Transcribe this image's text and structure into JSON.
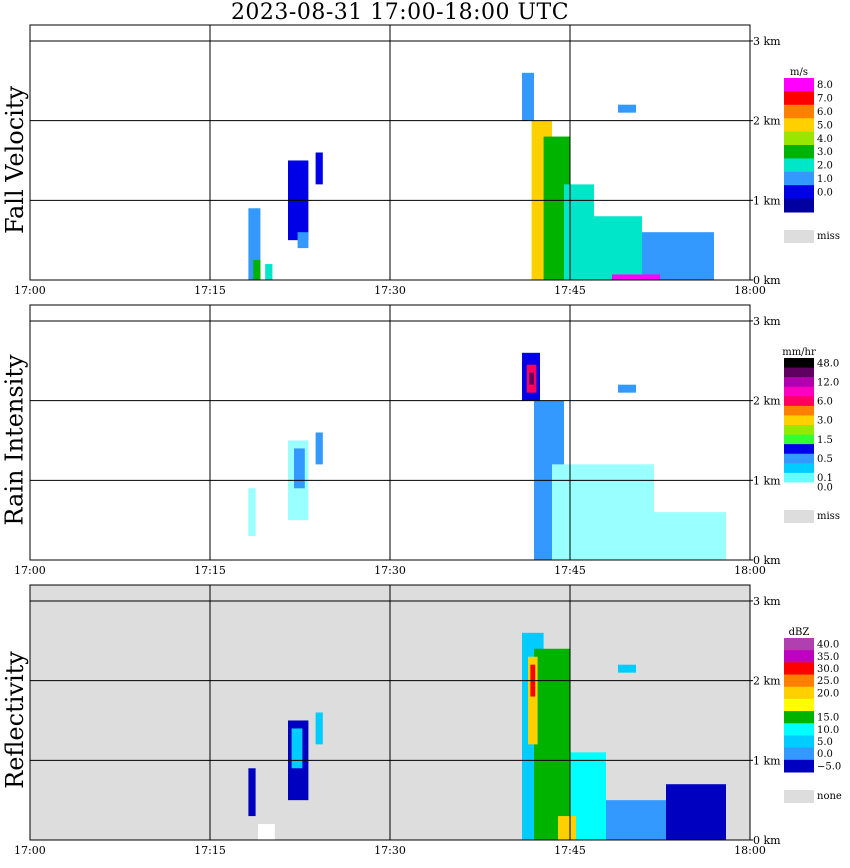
{
  "title": "2023-08-31   17:00-18:00 UTC",
  "chart_data": [
    {
      "type": "heatmap",
      "panel_label": "Fall Velocity",
      "unit": "m/s",
      "x_ticks": [
        "17:00",
        "17:15",
        "17:30",
        "17:45",
        "18:00"
      ],
      "x_range_minutes": [
        0,
        60
      ],
      "y_ticks": [
        "0 km",
        "1 km",
        "2 km",
        "3 km"
      ],
      "y_range_km": [
        0,
        3.2
      ],
      "grid": true,
      "background": "#ffffff",
      "legend": {
        "position": "right",
        "entries": [
          {
            "label": "8.0",
            "color": "#ff00ff"
          },
          {
            "label": "7.0",
            "color": "#ff0000"
          },
          {
            "label": "6.0",
            "color": "#ff7f00"
          },
          {
            "label": "5.0",
            "color": "#ffd000"
          },
          {
            "label": "4.0",
            "color": "#99e600"
          },
          {
            "label": "3.0",
            "color": "#00b300"
          },
          {
            "label": "2.0",
            "color": "#00e6c8"
          },
          {
            "label": "1.0",
            "color": "#3399ff"
          },
          {
            "label": "0.0",
            "color": "#0000e6"
          },
          {
            "label": "",
            "color": "#0000a0"
          }
        ],
        "missing": {
          "label": "miss",
          "color": "#dddddd"
        }
      },
      "regions": [
        {
          "t0": 18.2,
          "t1": 19.2,
          "h0": 0.0,
          "h1": 0.9,
          "color": "#3399ff"
        },
        {
          "t0": 18.6,
          "t1": 19.2,
          "h0": 0.0,
          "h1": 0.25,
          "color": "#00b300"
        },
        {
          "t0": 19.6,
          "t1": 20.2,
          "h0": 0.0,
          "h1": 0.2,
          "color": "#00e6c8"
        },
        {
          "t0": 21.5,
          "t1": 23.2,
          "h0": 0.5,
          "h1": 1.5,
          "color": "#0000e6"
        },
        {
          "t0": 22.3,
          "t1": 23.2,
          "h0": 0.4,
          "h1": 0.6,
          "color": "#3399ff"
        },
        {
          "t0": 23.8,
          "t1": 24.4,
          "h0": 1.2,
          "h1": 1.6,
          "color": "#0000e6"
        },
        {
          "t0": 41.0,
          "t1": 42.0,
          "h0": 2.0,
          "h1": 2.6,
          "color": "#3399ff"
        },
        {
          "t0": 41.8,
          "t1": 43.5,
          "h0": 0.0,
          "h1": 2.0,
          "color": "#ffd000"
        },
        {
          "t0": 42.8,
          "t1": 45.0,
          "h0": 0.0,
          "h1": 1.8,
          "color": "#00b300"
        },
        {
          "t0": 44.5,
          "t1": 47.0,
          "h0": 0.0,
          "h1": 1.2,
          "color": "#00e6c8"
        },
        {
          "t0": 46.5,
          "t1": 51.0,
          "h0": 0.0,
          "h1": 0.8,
          "color": "#00e6c8"
        },
        {
          "t0": 51.0,
          "t1": 57.0,
          "h0": 0.0,
          "h1": 0.6,
          "color": "#3399ff"
        },
        {
          "t0": 48.5,
          "t1": 52.5,
          "h0": 0.0,
          "h1": 0.07,
          "color": "#ff00ff"
        },
        {
          "t0": 49.0,
          "t1": 50.5,
          "h0": 2.1,
          "h1": 2.2,
          "color": "#3399ff"
        }
      ]
    },
    {
      "type": "heatmap",
      "panel_label": "Rain Intensity",
      "unit": "mm/hr",
      "x_ticks": [
        "17:00",
        "17:15",
        "17:30",
        "17:45",
        "18:00"
      ],
      "x_range_minutes": [
        0,
        60
      ],
      "y_ticks": [
        "0 km",
        "1 km",
        "2 km",
        "3 km"
      ],
      "y_range_km": [
        0,
        3.2
      ],
      "grid": true,
      "background": "#ffffff",
      "legend": {
        "position": "right",
        "entries": [
          {
            "label": "48.0",
            "color": "#000000"
          },
          {
            "label": "",
            "color": "#600060"
          },
          {
            "label": "12.0",
            "color": "#b000b0"
          },
          {
            "label": "",
            "color": "#ff00c0"
          },
          {
            "label": "6.0",
            "color": "#ff0060"
          },
          {
            "label": "",
            "color": "#ff7f00"
          },
          {
            "label": "3.0",
            "color": "#ffd000"
          },
          {
            "label": "",
            "color": "#99e600"
          },
          {
            "label": "1.5",
            "color": "#33ff33"
          },
          {
            "label": "",
            "color": "#0000e6"
          },
          {
            "label": "0.5",
            "color": "#3399ff"
          },
          {
            "label": "",
            "color": "#00ccff"
          },
          {
            "label": "0.1",
            "color": "#66ffff"
          },
          {
            "label": "0.0",
            "color": "#ffffff"
          }
        ],
        "missing": {
          "label": "miss",
          "color": "#dddddd"
        }
      },
      "regions": [
        {
          "t0": 18.2,
          "t1": 18.8,
          "h0": 0.3,
          "h1": 0.9,
          "color": "#99ffff"
        },
        {
          "t0": 21.5,
          "t1": 23.2,
          "h0": 0.5,
          "h1": 1.5,
          "color": "#99ffff"
        },
        {
          "t0": 22.0,
          "t1": 22.9,
          "h0": 0.9,
          "h1": 1.4,
          "color": "#3399ff"
        },
        {
          "t0": 23.8,
          "t1": 24.4,
          "h0": 1.2,
          "h1": 1.6,
          "color": "#3399ff"
        },
        {
          "t0": 41.0,
          "t1": 42.5,
          "h0": 2.0,
          "h1": 2.6,
          "color": "#0000e6"
        },
        {
          "t0": 41.4,
          "t1": 42.2,
          "h0": 2.1,
          "h1": 2.45,
          "color": "#ff0060"
        },
        {
          "t0": 41.6,
          "t1": 42.0,
          "h0": 2.2,
          "h1": 2.35,
          "color": "#600060"
        },
        {
          "t0": 42.0,
          "t1": 44.5,
          "h0": 0.0,
          "h1": 2.0,
          "color": "#3399ff"
        },
        {
          "t0": 43.5,
          "t1": 52.0,
          "h0": 0.0,
          "h1": 1.2,
          "color": "#99ffff"
        },
        {
          "t0": 52.0,
          "t1": 58.0,
          "h0": 0.0,
          "h1": 0.6,
          "color": "#99ffff"
        },
        {
          "t0": 49.0,
          "t1": 50.5,
          "h0": 2.1,
          "h1": 2.2,
          "color": "#3399ff"
        }
      ]
    },
    {
      "type": "heatmap",
      "panel_label": "Reflectivity",
      "unit": "dBZ",
      "x_ticks": [
        "17:00",
        "17:15",
        "17:30",
        "17:45",
        "18:00"
      ],
      "x_range_minutes": [
        0,
        60
      ],
      "y_ticks": [
        "0 km",
        "1 km",
        "2 km",
        "3 km"
      ],
      "y_range_km": [
        0,
        3.2
      ],
      "grid": true,
      "background": "#dddddd",
      "legend": {
        "position": "right",
        "entries": [
          {
            "label": "40.0",
            "color": "#b040b0"
          },
          {
            "label": "35.0",
            "color": "#c000c0"
          },
          {
            "label": "30.0",
            "color": "#ff0000"
          },
          {
            "label": "25.0",
            "color": "#ff7f00"
          },
          {
            "label": "20.0",
            "color": "#ffd000"
          },
          {
            "label": "",
            "color": "#ffff00"
          },
          {
            "label": "15.0",
            "color": "#00b300"
          },
          {
            "label": "10.0",
            "color": "#00ffff"
          },
          {
            "label": "5.0",
            "color": "#00ccff"
          },
          {
            "label": "0.0",
            "color": "#3399ff"
          },
          {
            "label": "−5.0",
            "color": "#0000c0"
          }
        ],
        "missing": {
          "label": "none",
          "color": "#dddddd"
        }
      },
      "regions": [
        {
          "t0": 18.2,
          "t1": 18.8,
          "h0": 0.3,
          "h1": 0.9,
          "color": "#0000c0"
        },
        {
          "t0": 19.0,
          "t1": 20.4,
          "h0": 0.0,
          "h1": 0.2,
          "color": "#ffffff"
        },
        {
          "t0": 21.5,
          "t1": 23.2,
          "h0": 0.5,
          "h1": 1.5,
          "color": "#0000c0"
        },
        {
          "t0": 21.8,
          "t1": 22.7,
          "h0": 0.9,
          "h1": 1.4,
          "color": "#00ccff"
        },
        {
          "t0": 23.8,
          "t1": 24.4,
          "h0": 1.2,
          "h1": 1.6,
          "color": "#00ccff"
        },
        {
          "t0": 41.0,
          "t1": 42.8,
          "h0": 0.0,
          "h1": 2.6,
          "color": "#00ccff"
        },
        {
          "t0": 42.0,
          "t1": 45.0,
          "h0": 0.0,
          "h1": 2.4,
          "color": "#00b300"
        },
        {
          "t0": 41.5,
          "t1": 42.3,
          "h0": 1.2,
          "h1": 2.3,
          "color": "#ffd000"
        },
        {
          "t0": 41.7,
          "t1": 42.1,
          "h0": 1.8,
          "h1": 2.2,
          "color": "#ff0000"
        },
        {
          "t0": 45.0,
          "t1": 48.0,
          "h0": 0.0,
          "h1": 1.1,
          "color": "#00ffff"
        },
        {
          "t0": 48.0,
          "t1": 53.0,
          "h0": 0.0,
          "h1": 0.5,
          "color": "#3399ff"
        },
        {
          "t0": 53.0,
          "t1": 58.0,
          "h0": 0.0,
          "h1": 0.7,
          "color": "#0000c0"
        },
        {
          "t0": 44.0,
          "t1": 45.5,
          "h0": 0.0,
          "h1": 0.3,
          "color": "#ffd000"
        },
        {
          "t0": 49.0,
          "t1": 50.5,
          "h0": 2.1,
          "h1": 2.2,
          "color": "#00ccff"
        }
      ]
    }
  ]
}
